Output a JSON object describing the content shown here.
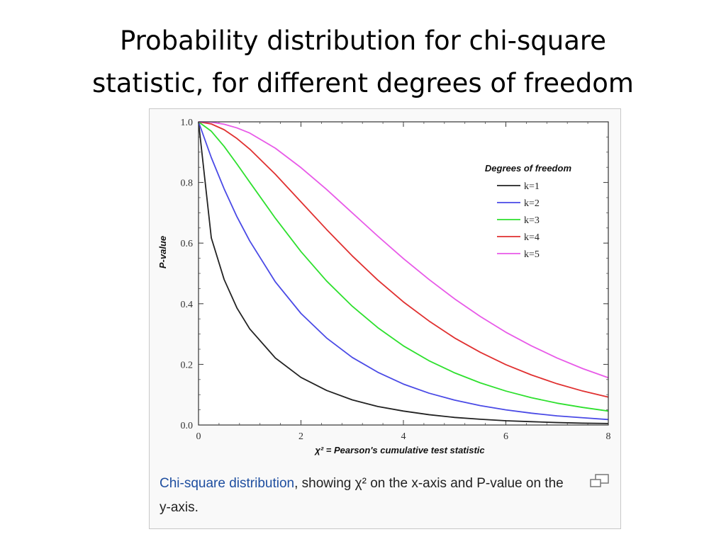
{
  "slide": {
    "title_line1": "Probability distribution for chi-square",
    "title_line2": "statistic, for different degrees of freedom"
  },
  "figure": {
    "caption_link": "Chi-square distribution",
    "caption_rest": ", showing χ² on the x-axis and P-value on the y-axis.",
    "enlarge_icon": "magnify-icon"
  },
  "chart_data": {
    "type": "line",
    "title": "",
    "xlabel": "χ² = Pearson's cumulative test statistic",
    "ylabel": "P-value",
    "xlim": [
      0,
      8
    ],
    "ylim": [
      0,
      1
    ],
    "x_ticks": [
      "0",
      "2",
      "4",
      "6",
      "8"
    ],
    "y_ticks": [
      "0.0",
      "0.2",
      "0.4",
      "0.6",
      "0.8",
      "1.0"
    ],
    "legend_title": "Degrees of freedom",
    "legend_position": "top-right",
    "grid": false,
    "x": [
      0,
      0.25,
      0.5,
      0.75,
      1,
      1.5,
      2,
      2.5,
      3,
      3.5,
      4,
      4.5,
      5,
      5.5,
      6,
      6.5,
      7,
      7.5,
      8
    ],
    "series": [
      {
        "name": "k=1",
        "color": "#222222",
        "values": [
          1.0,
          0.617,
          0.48,
          0.386,
          0.317,
          0.221,
          0.157,
          0.114,
          0.083,
          0.061,
          0.046,
          0.034,
          0.025,
          0.019,
          0.014,
          0.011,
          0.008,
          0.006,
          0.005
        ]
      },
      {
        "name": "k=2",
        "color": "#4a4ae6",
        "values": [
          1.0,
          0.882,
          0.779,
          0.687,
          0.607,
          0.472,
          0.368,
          0.287,
          0.223,
          0.174,
          0.135,
          0.105,
          0.082,
          0.064,
          0.05,
          0.039,
          0.03,
          0.024,
          0.018
        ]
      },
      {
        "name": "k=3",
        "color": "#2ee02e",
        "values": [
          1.0,
          0.969,
          0.919,
          0.861,
          0.801,
          0.682,
          0.572,
          0.475,
          0.392,
          0.321,
          0.261,
          0.212,
          0.172,
          0.139,
          0.112,
          0.09,
          0.072,
          0.058,
          0.046
        ]
      },
      {
        "name": "k=4",
        "color": "#e03030",
        "values": [
          1.0,
          0.993,
          0.974,
          0.945,
          0.91,
          0.827,
          0.736,
          0.645,
          0.558,
          0.478,
          0.406,
          0.343,
          0.287,
          0.24,
          0.199,
          0.165,
          0.136,
          0.112,
          0.092
        ]
      },
      {
        "name": "k=5",
        "color": "#e85ae8",
        "values": [
          1.0,
          0.999,
          0.992,
          0.98,
          0.963,
          0.913,
          0.849,
          0.777,
          0.7,
          0.623,
          0.549,
          0.48,
          0.416,
          0.358,
          0.306,
          0.261,
          0.221,
          0.186,
          0.156
        ]
      }
    ]
  }
}
